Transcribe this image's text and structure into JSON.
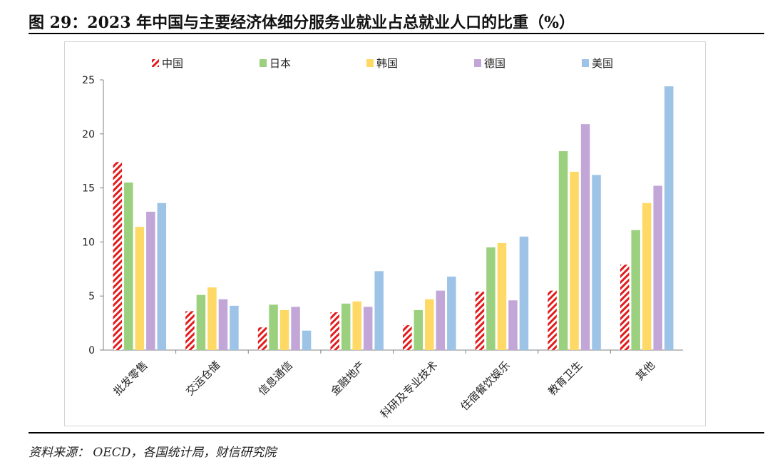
{
  "figure": {
    "title": "图 29：2023 年中国与主要经济体细分服务业就业占总就业人口的比重（%）",
    "source": "资料来源： OECD，各国统计局，财信研究院"
  },
  "chart_data": {
    "type": "bar",
    "title": "",
    "xlabel": "",
    "ylabel": "",
    "ylim": [
      0,
      25
    ],
    "yticks": [
      0,
      5,
      10,
      15,
      20,
      25
    ],
    "grid": false,
    "legend_position": "top",
    "categories": [
      "批发零售",
      "交运仓储",
      "信息通信",
      "金融地产",
      "科研及专业技术",
      "住宿餐饮娱乐",
      "教育卫生",
      "其他"
    ],
    "series": [
      {
        "name": "中国",
        "color": "#e31a1c",
        "pattern": "hatched",
        "values": [
          17.4,
          3.6,
          2.1,
          3.5,
          2.3,
          5.4,
          5.5,
          7.9
        ]
      },
      {
        "name": "日本",
        "color": "#9bd17e",
        "pattern": "solid",
        "values": [
          15.5,
          5.1,
          4.2,
          4.3,
          3.7,
          9.5,
          18.4,
          11.1
        ]
      },
      {
        "name": "韩国",
        "color": "#ffd966",
        "pattern": "solid",
        "values": [
          11.4,
          5.8,
          3.7,
          4.5,
          4.7,
          9.9,
          16.5,
          13.6
        ]
      },
      {
        "name": "德国",
        "color": "#c3a6d8",
        "pattern": "solid",
        "values": [
          12.8,
          4.7,
          4.0,
          4.0,
          5.5,
          4.6,
          20.9,
          15.2
        ]
      },
      {
        "name": "美国",
        "color": "#9dc3e6",
        "pattern": "solid",
        "values": [
          13.6,
          4.1,
          1.8,
          7.3,
          6.8,
          10.5,
          16.2,
          24.4
        ]
      }
    ]
  }
}
